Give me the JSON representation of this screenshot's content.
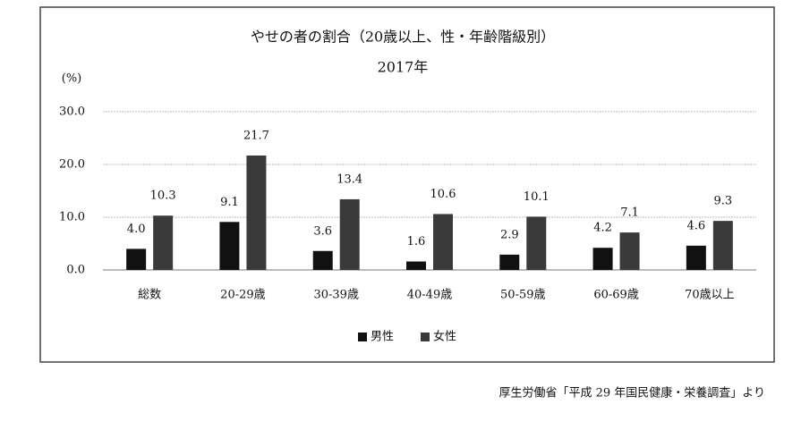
{
  "chart_data": {
    "type": "bar",
    "title": "やせの者の割合（20歳以上、性・年齢階級別）",
    "subtitle": "2017年",
    "y_label": "(%)",
    "categories": [
      "総数",
      "20-29歳",
      "30-39歳",
      "40-49歳",
      "50-59歳",
      "60-69歳",
      "70歳以上"
    ],
    "series": [
      {
        "name": "男性",
        "color": "#111111",
        "values": [
          4.0,
          9.1,
          3.6,
          1.6,
          2.9,
          4.2,
          4.6
        ],
        "value_labels": [
          "4.0",
          "9.1",
          "3.6",
          "1.6",
          "2.9",
          "4.2",
          "4.6"
        ]
      },
      {
        "name": "女性",
        "color": "#3a3a3a",
        "values": [
          10.3,
          21.7,
          13.4,
          10.6,
          10.1,
          7.1,
          9.3
        ],
        "value_labels": [
          "10.3",
          "21.7",
          "13.4",
          "10.6",
          "10.1",
          "7.1",
          "9.3"
        ]
      }
    ],
    "ylim": [
      0,
      30
    ],
    "yticks": [
      {
        "value": 0,
        "label": "0.0"
      },
      {
        "value": 10,
        "label": "10.0"
      },
      {
        "value": 20,
        "label": "20.0"
      },
      {
        "value": 30,
        "label": "30.0"
      }
    ],
    "grid": true,
    "legend": "bottom",
    "source": "厚生労働省「平成 29 年国民健康・栄養調査」より"
  }
}
